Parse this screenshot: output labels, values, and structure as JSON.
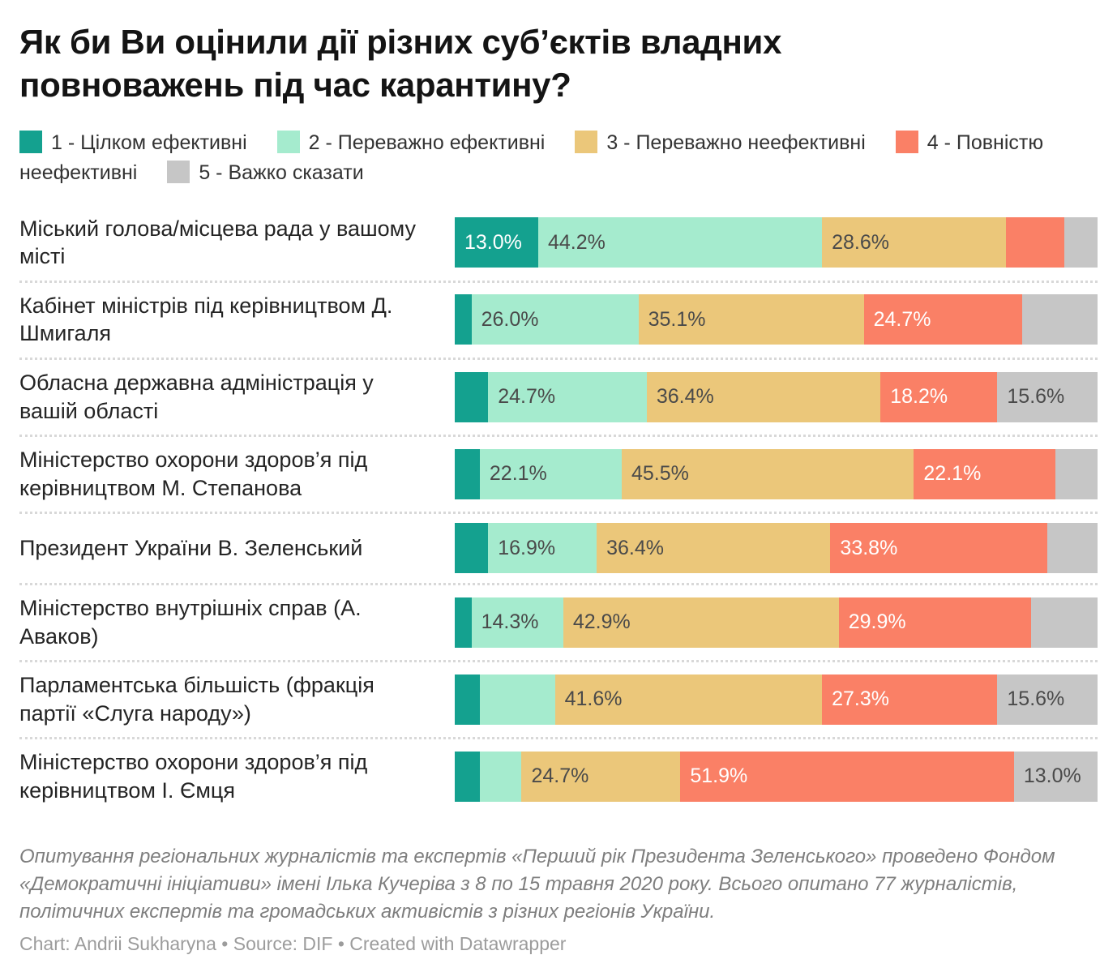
{
  "title": "Як би Ви оцінили дії різних суб’єктів владних повноважень під час карантину?",
  "chart_data": {
    "type": "bar",
    "variant": "stacked-horizontal",
    "unit": "percent",
    "xlim": [
      0,
      100
    ],
    "grid": false,
    "legend_position": "top",
    "categories": [
      "1 - Цілком ефективні",
      "2 - Переважно ефективні",
      "3 - Переважно неефективні",
      "4 - Повністю неефективні",
      "5 - Важко сказати"
    ],
    "colors": [
      "#14A18F",
      "#A5EBCE",
      "#EBC77A",
      "#FA8066",
      "#C6C6C6"
    ],
    "value_label_colors": [
      "#FFFFFF",
      "#4A4A4A",
      "#4A4A4A",
      "#FFFFFF",
      "#4A4A4A"
    ],
    "rows": [
      {
        "label": "Міський голова/місцева рада у вашому місті",
        "values": [
          13.0,
          44.2,
          28.6,
          9.1,
          5.2
        ],
        "value_labels": [
          "13.0%",
          "44.2%",
          "28.6%",
          null,
          null
        ]
      },
      {
        "label": "Кабінет міністрів під керівництвом Д. Шмигаля",
        "values": [
          2.6,
          26.0,
          35.1,
          24.7,
          11.7
        ],
        "value_labels": [
          null,
          "26.0%",
          "35.1%",
          "24.7%",
          null
        ]
      },
      {
        "label": "Обласна державна адміністрація у вашій області",
        "values": [
          5.2,
          24.7,
          36.4,
          18.2,
          15.6
        ],
        "value_labels": [
          null,
          "24.7%",
          "36.4%",
          "18.2%",
          "15.6%"
        ]
      },
      {
        "label": "Міністерство охорони здоров’я під керівництвом М. Степанова",
        "values": [
          3.9,
          22.1,
          45.5,
          22.1,
          6.5
        ],
        "value_labels": [
          null,
          "22.1%",
          "45.5%",
          "22.1%",
          null
        ]
      },
      {
        "label": "Президент України В. Зеленський",
        "values": [
          5.2,
          16.9,
          36.4,
          33.8,
          7.8
        ],
        "value_labels": [
          null,
          "16.9%",
          "36.4%",
          "33.8%",
          null
        ]
      },
      {
        "label": "Міністерство внутрішніх справ (А. Аваков)",
        "values": [
          2.6,
          14.3,
          42.9,
          29.9,
          10.4
        ],
        "value_labels": [
          null,
          "14.3%",
          "42.9%",
          "29.9%",
          null
        ]
      },
      {
        "label": "Парламентська більшість (фракція партії «Слуга народу»)",
        "values": [
          3.9,
          11.7,
          41.6,
          27.3,
          15.6
        ],
        "value_labels": [
          null,
          null,
          "41.6%",
          "27.3%",
          "15.6%"
        ]
      },
      {
        "label": "Міністерство охорони здоров’я під керівництвом І. Ємця",
        "values": [
          3.9,
          6.5,
          24.7,
          51.9,
          13.0
        ],
        "value_labels": [
          null,
          null,
          "24.7%",
          "51.9%",
          "13.0%"
        ]
      }
    ]
  },
  "footer": {
    "notes": "Опитування регіональних журналістів та експертів «Перший рік Президента Зеленського» проведено Фондом «Демократичні ініціативи» імені Ілька Кучеріва з 8 по 15 травня 2020 року. Всього опитано 77 журналістів, політичних експертів та громадських активістів з різних регіонів України.",
    "credit": "Chart: Andrii Sukharyna • Source: DIF • Created with Datawrapper"
  }
}
